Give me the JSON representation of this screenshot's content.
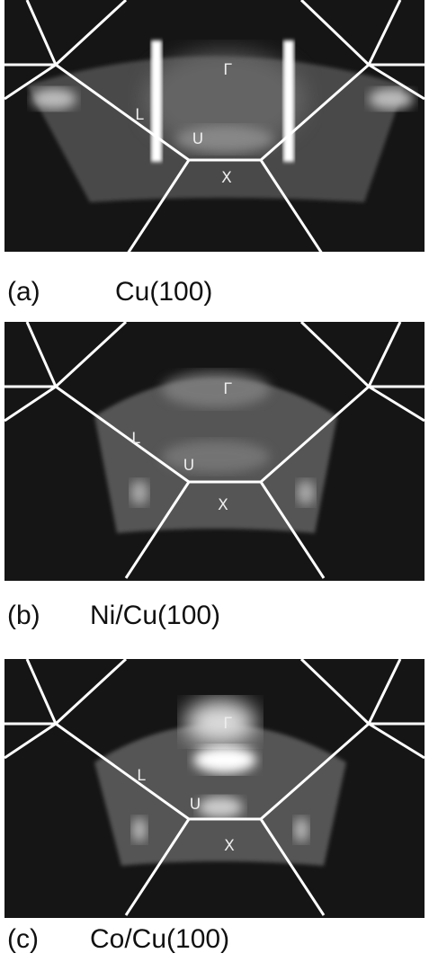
{
  "panels": [
    {
      "tag": "(a)",
      "sample": "Cu(100)",
      "points": [
        "Γ",
        "L",
        "U",
        "X"
      ]
    },
    {
      "tag": "(b)",
      "sample": "Ni/Cu(100)",
      "points": [
        "Γ",
        "L",
        "U",
        "X"
      ]
    },
    {
      "tag": "(c)",
      "sample": "Co/Cu(100)",
      "points": [
        "Γ",
        "L",
        "U",
        "X"
      ]
    }
  ]
}
